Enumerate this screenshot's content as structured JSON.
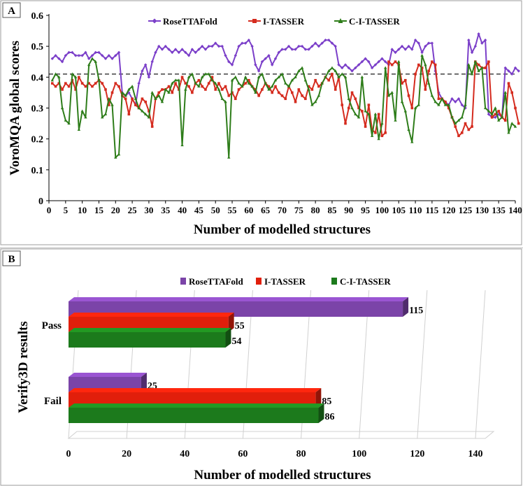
{
  "chart_data": [
    {
      "panel_label": "A",
      "type": "line",
      "xlabel": "Number of modelled structures",
      "ylabel": "VoroMQA global scores",
      "xlim": [
        0,
        140
      ],
      "ylim": [
        0,
        0.6
      ],
      "xticks": [
        0,
        5,
        10,
        15,
        20,
        25,
        30,
        35,
        40,
        45,
        50,
        55,
        60,
        65,
        70,
        75,
        80,
        85,
        90,
        95,
        100,
        105,
        110,
        115,
        120,
        125,
        130,
        135,
        140
      ],
      "yticks": [
        0,
        0.1,
        0.2,
        0.3,
        0.4,
        0.5,
        0.6
      ],
      "ytick_labels": [
        "0",
        "0.1",
        "0.2",
        "0.3",
        "0.4",
        "0.5",
        "0.6"
      ],
      "reference_line": {
        "y": 0.41,
        "style": "dashed",
        "color": "#000000"
      },
      "series": [
        {
          "name": "RoseTTAFold",
          "color": "#7B3FC9",
          "marker": "diamond",
          "values": [
            0.46,
            0.47,
            0.46,
            0.45,
            0.47,
            0.48,
            0.48,
            0.47,
            0.47,
            0.47,
            0.48,
            0.46,
            0.47,
            0.48,
            0.48,
            0.47,
            0.46,
            0.47,
            0.46,
            0.47,
            0.48,
            0.35,
            0.34,
            0.35,
            0.33,
            0.31,
            0.38,
            0.42,
            0.44,
            0.4,
            0.45,
            0.48,
            0.5,
            0.49,
            0.5,
            0.49,
            0.48,
            0.49,
            0.48,
            0.49,
            0.48,
            0.47,
            0.49,
            0.48,
            0.49,
            0.5,
            0.49,
            0.5,
            0.5,
            0.51,
            0.5,
            0.5,
            0.47,
            0.45,
            0.44,
            0.47,
            0.5,
            0.51,
            0.51,
            0.52,
            0.5,
            0.44,
            0.42,
            0.45,
            0.46,
            0.47,
            0.44,
            0.46,
            0.48,
            0.49,
            0.49,
            0.5,
            0.49,
            0.49,
            0.5,
            0.5,
            0.49,
            0.49,
            0.5,
            0.51,
            0.5,
            0.51,
            0.52,
            0.52,
            0.51,
            0.5,
            0.44,
            0.43,
            0.44,
            0.43,
            0.42,
            0.43,
            0.44,
            0.45,
            0.46,
            0.45,
            0.43,
            0.44,
            0.45,
            0.46,
            0.45,
            0.44,
            0.49,
            0.48,
            0.49,
            0.5,
            0.49,
            0.5,
            0.49,
            0.52,
            0.51,
            0.48,
            0.5,
            0.51,
            0.51,
            0.42,
            0.35,
            0.33,
            0.32,
            0.31,
            0.33,
            0.32,
            0.33,
            0.31,
            0.3,
            0.52,
            0.48,
            0.5,
            0.54,
            0.51,
            0.52,
            0.28,
            0.27,
            0.27,
            0.28,
            0.27,
            0.43,
            0.42,
            0.41,
            0.43,
            0.42
          ]
        },
        {
          "name": "I-TASSER",
          "color": "#D52B1E",
          "marker": "square",
          "values": [
            0.38,
            0.37,
            0.38,
            0.36,
            0.38,
            0.37,
            0.39,
            0.36,
            0.4,
            0.38,
            0.37,
            0.38,
            0.37,
            0.38,
            0.39,
            0.38,
            0.36,
            0.31,
            0.35,
            0.38,
            0.37,
            0.34,
            0.33,
            0.28,
            0.33,
            0.31,
            0.3,
            0.33,
            0.32,
            0.29,
            0.24,
            0.33,
            0.35,
            0.36,
            0.36,
            0.37,
            0.35,
            0.38,
            0.36,
            0.4,
            0.38,
            0.37,
            0.35,
            0.38,
            0.39,
            0.37,
            0.36,
            0.38,
            0.4,
            0.36,
            0.38,
            0.36,
            0.37,
            0.34,
            0.35,
            0.33,
            0.36,
            0.37,
            0.38,
            0.39,
            0.37,
            0.36,
            0.34,
            0.36,
            0.38,
            0.37,
            0.35,
            0.37,
            0.35,
            0.34,
            0.33,
            0.37,
            0.35,
            0.32,
            0.36,
            0.34,
            0.33,
            0.37,
            0.36,
            0.39,
            0.37,
            0.38,
            0.4,
            0.39,
            0.41,
            0.36,
            0.4,
            0.31,
            0.25,
            0.3,
            0.35,
            0.33,
            0.3,
            0.29,
            0.24,
            0.31,
            0.23,
            0.22,
            0.28,
            0.21,
            0.22,
            0.45,
            0.44,
            0.45,
            0.44,
            0.38,
            0.39,
            0.34,
            0.3,
            0.41,
            0.44,
            0.43,
            0.36,
            0.42,
            0.45,
            0.44,
            0.33,
            0.33,
            0.32,
            0.3,
            0.27,
            0.24,
            0.21,
            0.22,
            0.25,
            0.23,
            0.24,
            0.45,
            0.44,
            0.43,
            0.43,
            0.45,
            0.27,
            0.28,
            0.29,
            0.27,
            0.26,
            0.38,
            0.35,
            0.3,
            0.25
          ]
        },
        {
          "name": "C-I-TASSER",
          "color": "#2E7D1A",
          "marker": "triangle",
          "values": [
            0.39,
            0.41,
            0.4,
            0.3,
            0.26,
            0.25,
            0.41,
            0.4,
            0.23,
            0.29,
            0.27,
            0.44,
            0.46,
            0.45,
            0.39,
            0.27,
            0.28,
            0.33,
            0.31,
            0.14,
            0.15,
            0.35,
            0.34,
            0.36,
            0.37,
            0.33,
            0.3,
            0.29,
            0.28,
            0.27,
            0.35,
            0.33,
            0.34,
            0.32,
            0.36,
            0.35,
            0.38,
            0.39,
            0.39,
            0.18,
            0.36,
            0.4,
            0.41,
            0.38,
            0.37,
            0.4,
            0.41,
            0.41,
            0.39,
            0.38,
            0.36,
            0.33,
            0.32,
            0.14,
            0.39,
            0.4,
            0.38,
            0.37,
            0.4,
            0.38,
            0.37,
            0.35,
            0.4,
            0.41,
            0.38,
            0.36,
            0.37,
            0.39,
            0.4,
            0.41,
            0.38,
            0.37,
            0.39,
            0.4,
            0.42,
            0.43,
            0.39,
            0.36,
            0.31,
            0.32,
            0.34,
            0.38,
            0.4,
            0.42,
            0.43,
            0.42,
            0.4,
            0.41,
            0.4,
            0.33,
            0.3,
            0.28,
            0.27,
            0.4,
            0.29,
            0.28,
            0.21,
            0.28,
            0.2,
            0.25,
            0.43,
            0.34,
            0.35,
            0.26,
            0.45,
            0.32,
            0.29,
            0.23,
            0.19,
            0.3,
            0.31,
            0.47,
            0.44,
            0.38,
            0.34,
            0.32,
            0.31,
            0.33,
            0.31,
            0.31,
            0.27,
            0.25,
            0.26,
            0.27,
            0.31,
            0.44,
            0.41,
            0.45,
            0.42,
            0.43,
            0.3,
            0.29,
            0.28,
            0.3,
            0.26,
            0.27,
            0.35,
            0.22,
            0.25,
            0.24
          ]
        }
      ]
    },
    {
      "panel_label": "B",
      "type": "bar",
      "orientation": "horizontal",
      "xlabel": "Number of modelled structures",
      "ylabel": "Verify3D results",
      "xlim": [
        0,
        140
      ],
      "xticks": [
        0,
        20,
        40,
        60,
        80,
        100,
        120,
        140
      ],
      "categories": [
        "Pass",
        "Fail"
      ],
      "series": [
        {
          "name": "RoseTTAFold",
          "color": "#7B44A8",
          "values": [
            115,
            25
          ]
        },
        {
          "name": "I-TASSER",
          "color": "#E11F0B",
          "values": [
            55,
            85
          ]
        },
        {
          "name": "C-I-TASSER",
          "color": "#1C7A1C",
          "values": [
            54,
            86
          ]
        }
      ]
    }
  ]
}
